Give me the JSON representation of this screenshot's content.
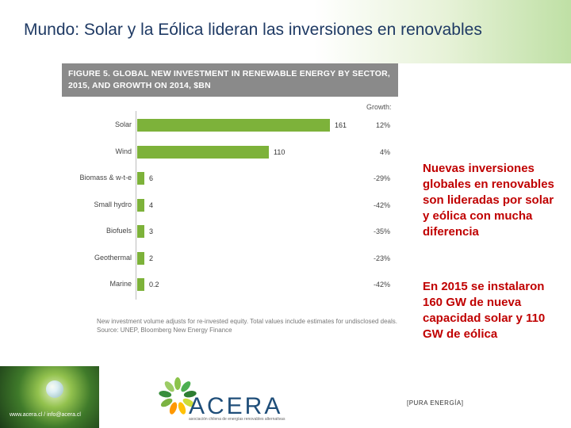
{
  "slide": {
    "title": "Mundo: Solar y la Eólica lideran las inversiones en renovables",
    "side_text_1": "Nuevas inversiones globales en renovables son lideradas por solar y eólica con mucha diferencia",
    "side_text_2": "En 2015 se instalaron 160 GW de nueva capacidad solar y 110 GW de eólica",
    "footer_tag": "[PURA ENERGÍA]",
    "footer_website": "www.acera.cl / info@acera.cl",
    "logo_word": "ACERA",
    "logo_tagline": "asociación chilena de energías renovables alternativas"
  },
  "colors": {
    "bar": "#7db23a",
    "header_gray": "#8a8a8a",
    "title_blue": "#1f3a64",
    "side_red": "#c00000"
  },
  "chart_data": {
    "type": "bar",
    "orientation": "horizontal",
    "title": "FIGURE 5. GLOBAL NEW INVESTMENT IN RENEWABLE ENERGY BY SECTOR, 2015, AND GROWTH ON 2014, $BN",
    "growth_header": "Growth:",
    "categories": [
      "Solar",
      "Wind",
      "Biomass & w-t-e",
      "Small hydro",
      "Biofuels",
      "Geothermal",
      "Marine"
    ],
    "values": [
      161,
      110,
      6,
      4,
      3,
      2,
      0.2
    ],
    "value_labels": [
      "161",
      "110",
      "6",
      "4",
      "3",
      "2",
      "0.2"
    ],
    "growth": [
      "12%",
      "4%",
      "-29%",
      "-42%",
      "-35%",
      "-23%",
      "-42%"
    ],
    "xlim": [
      0,
      161
    ],
    "note": "New investment volume adjusts for re-invested equity. Total values include estimates for undisclosed deals.",
    "source": "Source: UNEP, Bloomberg New Energy Finance"
  }
}
